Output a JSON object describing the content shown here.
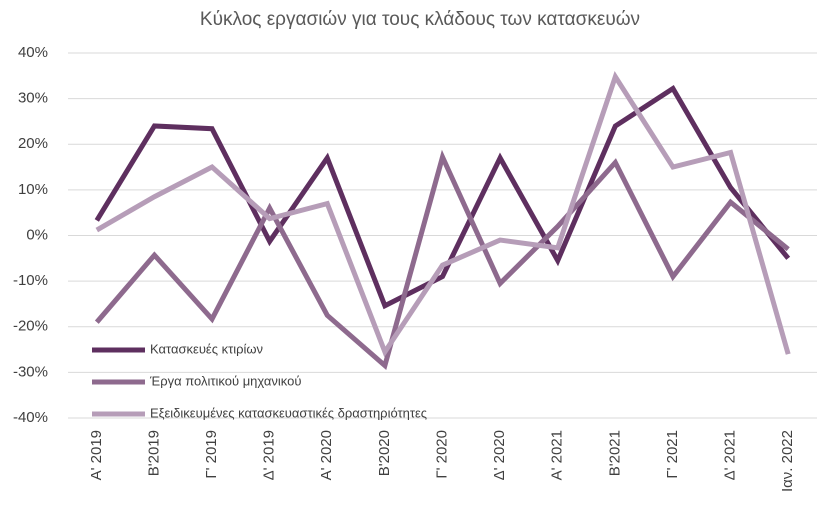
{
  "chart_data": {
    "type": "line",
    "title": "Κύκλος εργασιών για τους κλάδους των κατασκευών",
    "categories": [
      "Α' 2019",
      "Β'2019",
      "Γ' 2019",
      "Δ' 2019",
      "Α' 2020",
      "Β'2020",
      "Γ' 2020",
      "Δ' 2020",
      "Α' 2021",
      "Β'2021",
      "Γ' 2021",
      "Δ' 2021",
      "Ιαν. 2022"
    ],
    "series": [
      {
        "name": "Κατασκευές κτιρίων",
        "color": "#5e2f5f",
        "values": [
          3.3,
          24,
          23.4,
          -1.3,
          17,
          -15.4,
          -9,
          17,
          -5.5,
          24,
          32.2,
          10.5,
          -5
        ]
      },
      {
        "name": "Έργα πολιτικού μηχανικού",
        "color": "#8e6a8e",
        "values": [
          -19,
          -4.3,
          -18.3,
          6,
          -17.5,
          -28.5,
          17.2,
          -10.5,
          2,
          16,
          -9,
          7.3,
          -3
        ]
      },
      {
        "name": "Εξειδικευμένες κατασκευαστικές δραστηριότητες",
        "color": "#b69db8",
        "values": [
          1.2,
          8.5,
          15,
          3.7,
          7,
          -25.5,
          -6.5,
          -1,
          -2.7,
          34.8,
          15,
          18.2,
          -26
        ]
      }
    ],
    "ylim": [
      -40,
      40
    ],
    "yticks": [
      {
        "value": -40,
        "label": "-40%"
      },
      {
        "value": -30,
        "label": "-30%"
      },
      {
        "value": -20,
        "label": "-20%"
      },
      {
        "value": -10,
        "label": "-10%"
      },
      {
        "value": 0,
        "label": "0%"
      },
      {
        "value": 10,
        "label": "10%"
      },
      {
        "value": 20,
        "label": "20%"
      },
      {
        "value": 30,
        "label": "30%"
      },
      {
        "value": 40,
        "label": "40%"
      }
    ],
    "grid": true,
    "legend": "lower left"
  }
}
